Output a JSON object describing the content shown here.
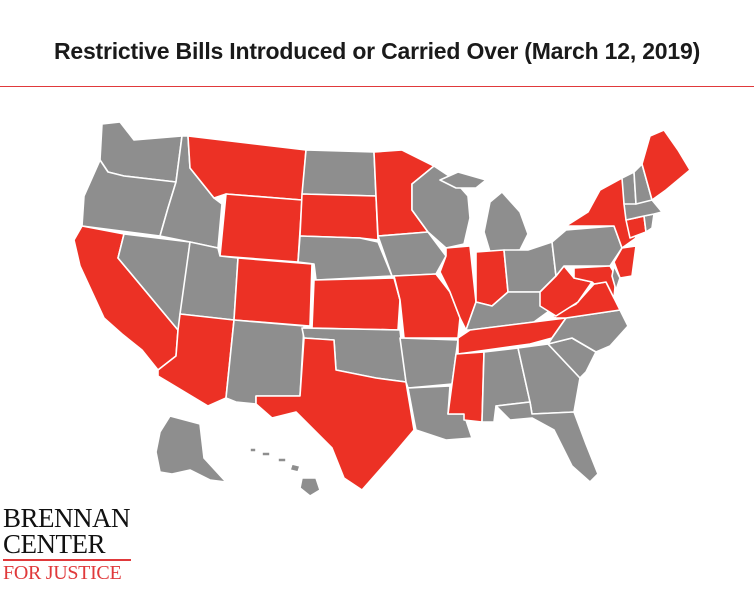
{
  "title": "Restrictive Bills Introduced or Carried Over (March 12, 2019)",
  "colors": {
    "restrictive": "#ec3125",
    "other": "#8e8e8e",
    "border": "#ffffff",
    "rule": "#e0393b"
  },
  "logo": {
    "line1": "BRENNAN",
    "line2": "CENTER",
    "line3": "FOR JUSTICE"
  },
  "states": [
    {
      "name": "WA",
      "status": "other"
    },
    {
      "name": "OR",
      "status": "other"
    },
    {
      "name": "CA",
      "status": "restrictive"
    },
    {
      "name": "NV",
      "status": "other"
    },
    {
      "name": "ID",
      "status": "other"
    },
    {
      "name": "MT",
      "status": "restrictive"
    },
    {
      "name": "WY",
      "status": "restrictive"
    },
    {
      "name": "UT",
      "status": "other"
    },
    {
      "name": "AZ",
      "status": "restrictive"
    },
    {
      "name": "CO",
      "status": "restrictive"
    },
    {
      "name": "NM",
      "status": "other"
    },
    {
      "name": "ND",
      "status": "other"
    },
    {
      "name": "SD",
      "status": "restrictive"
    },
    {
      "name": "NE",
      "status": "other"
    },
    {
      "name": "KS",
      "status": "restrictive"
    },
    {
      "name": "OK",
      "status": "other"
    },
    {
      "name": "TX",
      "status": "restrictive"
    },
    {
      "name": "MN",
      "status": "restrictive"
    },
    {
      "name": "IA",
      "status": "other"
    },
    {
      "name": "MO",
      "status": "restrictive"
    },
    {
      "name": "AR",
      "status": "other"
    },
    {
      "name": "LA",
      "status": "other"
    },
    {
      "name": "WI",
      "status": "other"
    },
    {
      "name": "IL",
      "status": "restrictive"
    },
    {
      "name": "MI",
      "status": "other"
    },
    {
      "name": "IN",
      "status": "restrictive"
    },
    {
      "name": "OH",
      "status": "other"
    },
    {
      "name": "KY",
      "status": "other"
    },
    {
      "name": "TN",
      "status": "restrictive"
    },
    {
      "name": "MS",
      "status": "restrictive"
    },
    {
      "name": "AL",
      "status": "other"
    },
    {
      "name": "GA",
      "status": "other"
    },
    {
      "name": "FL",
      "status": "other"
    },
    {
      "name": "SC",
      "status": "other"
    },
    {
      "name": "NC",
      "status": "other"
    },
    {
      "name": "VA",
      "status": "restrictive"
    },
    {
      "name": "WV",
      "status": "restrictive"
    },
    {
      "name": "PA",
      "status": "other"
    },
    {
      "name": "NY",
      "status": "restrictive"
    },
    {
      "name": "NJ",
      "status": "restrictive"
    },
    {
      "name": "MD",
      "status": "restrictive"
    },
    {
      "name": "DE",
      "status": "other"
    },
    {
      "name": "CT",
      "status": "restrictive"
    },
    {
      "name": "RI",
      "status": "other"
    },
    {
      "name": "MA",
      "status": "other"
    },
    {
      "name": "VT",
      "status": "other"
    },
    {
      "name": "NH",
      "status": "other"
    },
    {
      "name": "ME",
      "status": "restrictive"
    },
    {
      "name": "AK",
      "status": "other"
    },
    {
      "name": "HI",
      "status": "other"
    }
  ]
}
